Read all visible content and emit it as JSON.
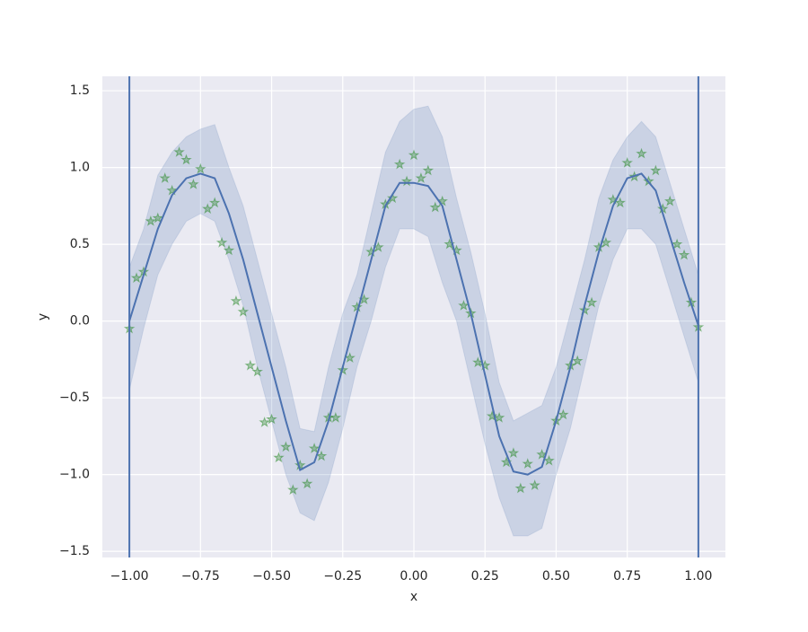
{
  "chart_data": {
    "type": "line",
    "xlabel": "x",
    "ylabel": "y",
    "xlim": [
      -1.095,
      1.095
    ],
    "ylim": [
      -1.54,
      1.594
    ],
    "xticks": [
      {
        "value": -1,
        "label": "−1.00"
      },
      {
        "value": -0.75,
        "label": "−0.75"
      },
      {
        "value": -0.5,
        "label": "−0.50"
      },
      {
        "value": -0.25,
        "label": "−0.25"
      },
      {
        "value": 0,
        "label": "0.00"
      },
      {
        "value": 0.25,
        "label": "0.25"
      },
      {
        "value": 0.5,
        "label": "0.50"
      },
      {
        "value": 0.75,
        "label": "0.75"
      },
      {
        "value": 1,
        "label": "1.00"
      }
    ],
    "yticks": [
      {
        "value": -1.5,
        "label": "−1.5"
      },
      {
        "value": -1,
        "label": "−1.0"
      },
      {
        "value": -0.5,
        "label": "−0.5"
      },
      {
        "value": 0,
        "label": "0.0"
      },
      {
        "value": 0.5,
        "label": "0.5"
      },
      {
        "value": 1,
        "label": "1.0"
      },
      1.5
    ],
    "grid": true,
    "vlines": [
      -1,
      1
    ],
    "vline_color": "#4c72b0",
    "series": [
      {
        "kind": "band",
        "color": "#4c72b0",
        "x": [
          -1,
          -0.95,
          -0.9,
          -0.85,
          -0.8,
          -0.75,
          -0.7,
          -0.65,
          -0.6,
          -0.55,
          -0.5,
          -0.45,
          -0.4,
          -0.35,
          -0.3,
          -0.25,
          -0.2,
          -0.15,
          -0.1,
          -0.05,
          0,
          0.05,
          0.1,
          0.15,
          0.2,
          0.25,
          0.3,
          0.35,
          0.4,
          0.45,
          0.5,
          0.55,
          0.6,
          0.65,
          0.7,
          0.75,
          0.8,
          0.85,
          0.9,
          0.95,
          1
        ],
        "upper": [
          0.35,
          0.6,
          0.95,
          1.1,
          1.2,
          1.25,
          1.28,
          1.0,
          0.75,
          0.4,
          0.05,
          -0.3,
          -0.7,
          -0.72,
          -0.3,
          0.05,
          0.3,
          0.7,
          1.1,
          1.3,
          1.38,
          1.4,
          1.2,
          0.8,
          0.45,
          0.05,
          -0.4,
          -0.65,
          -0.6,
          -0.55,
          -0.3,
          0.05,
          0.4,
          0.8,
          1.05,
          1.2,
          1.3,
          1.2,
          0.9,
          0.6,
          0.3
        ],
        "lower": [
          -0.45,
          -0.05,
          0.3,
          0.5,
          0.65,
          0.7,
          0.65,
          0.4,
          0.1,
          -0.3,
          -0.65,
          -1.0,
          -1.25,
          -1.3,
          -1.05,
          -0.7,
          -0.3,
          0.0,
          0.35,
          0.6,
          0.6,
          0.55,
          0.25,
          0.0,
          -0.4,
          -0.8,
          -1.15,
          -1.4,
          -1.4,
          -1.35,
          -1.0,
          -0.7,
          -0.3,
          0.1,
          0.4,
          0.6,
          0.6,
          0.5,
          0.2,
          -0.1,
          -0.4
        ]
      },
      {
        "kind": "scatter",
        "color": "#2a8a2a",
        "x": [
          -1,
          -0.975,
          -0.95,
          -0.925,
          -0.9,
          -0.875,
          -0.85,
          -0.825,
          -0.8,
          -0.775,
          -0.75,
          -0.725,
          -0.7,
          -0.675,
          -0.65,
          -0.625,
          -0.6,
          -0.575,
          -0.55,
          -0.525,
          -0.5,
          -0.475,
          -0.45,
          -0.425,
          -0.4,
          -0.375,
          -0.35,
          -0.325,
          -0.3,
          -0.275,
          -0.25,
          -0.225,
          -0.2,
          -0.175,
          -0.15,
          -0.125,
          -0.1,
          -0.075,
          -0.05,
          -0.025,
          0,
          0.025,
          0.05,
          0.075,
          0.1,
          0.125,
          0.15,
          0.175,
          0.2,
          0.225,
          0.25,
          0.275,
          0.3,
          0.325,
          0.35,
          0.375,
          0.4,
          0.425,
          0.45,
          0.475,
          0.5,
          0.525,
          0.55,
          0.575,
          0.6,
          0.625,
          0.65,
          0.675,
          0.7,
          0.725,
          0.75,
          0.775,
          0.8,
          0.825,
          0.85,
          0.875,
          0.9,
          0.925,
          0.95,
          0.975,
          1
        ],
        "values": [
          -0.05,
          0.28,
          0.32,
          0.65,
          0.67,
          0.93,
          0.85,
          1.1,
          1.05,
          0.89,
          0.99,
          0.73,
          0.77,
          0.51,
          0.46,
          0.13,
          0.06,
          -0.29,
          -0.33,
          -0.66,
          -0.64,
          -0.89,
          -0.82,
          -1.1,
          -0.94,
          -1.06,
          -0.83,
          -0.88,
          -0.63,
          -0.63,
          -0.32,
          -0.24,
          0.09,
          0.14,
          0.45,
          0.48,
          0.76,
          0.8,
          1.02,
          0.91,
          1.08,
          0.93,
          0.98,
          0.74,
          0.78,
          0.5,
          0.46,
          0.1,
          0.05,
          -0.27,
          -0.29,
          -0.62,
          -0.63,
          -0.92,
          -0.86,
          -1.09,
          -0.93,
          -1.07,
          -0.87,
          -0.91,
          -0.65,
          -0.61,
          -0.29,
          -0.26,
          0.07,
          0.12,
          0.48,
          0.51,
          0.79,
          0.77,
          1.03,
          0.94,
          1.09,
          0.91,
          0.98,
          0.73,
          0.78,
          0.5,
          0.43,
          0.12,
          -0.04
        ]
      },
      {
        "kind": "line",
        "color": "#4c72b0",
        "x": [
          -1,
          -0.95,
          -0.9,
          -0.85,
          -0.8,
          -0.75,
          -0.7,
          -0.65,
          -0.6,
          -0.55,
          -0.5,
          -0.45,
          -0.4,
          -0.35,
          -0.3,
          -0.25,
          -0.2,
          -0.15,
          -0.1,
          -0.05,
          0,
          0.05,
          0.1,
          0.15,
          0.2,
          0.25,
          0.3,
          0.35,
          0.4,
          0.45,
          0.5,
          0.55,
          0.6,
          0.65,
          0.7,
          0.75,
          0.8,
          0.85,
          0.9,
          0.95,
          1
        ],
        "values": [
          0.0,
          0.3,
          0.6,
          0.82,
          0.93,
          0.96,
          0.93,
          0.7,
          0.4,
          0.05,
          -0.3,
          -0.65,
          -0.97,
          -0.92,
          -0.65,
          -0.3,
          0.05,
          0.4,
          0.75,
          0.9,
          0.9,
          0.88,
          0.75,
          0.4,
          0.05,
          -0.35,
          -0.75,
          -0.98,
          -1.0,
          -0.95,
          -0.65,
          -0.3,
          0.1,
          0.45,
          0.75,
          0.93,
          0.96,
          0.85,
          0.55,
          0.25,
          -0.03
        ]
      }
    ]
  }
}
